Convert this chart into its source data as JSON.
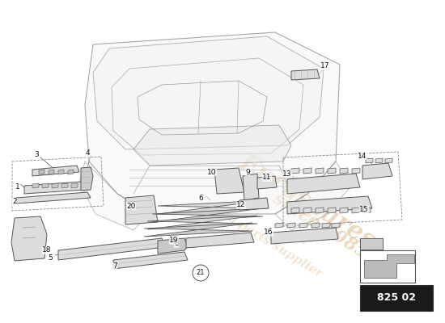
{
  "bg_color": "#ffffff",
  "watermark_lines": [
    "Eurospares",
    "since 1985"
  ],
  "watermark_color": "#d4aa70",
  "watermark_alpha": 0.45,
  "page_code": "825 02",
  "line_color": "#555555",
  "part_color": "#dddddd",
  "fig_w": 5.5,
  "fig_h": 4.0,
  "dpi": 100
}
